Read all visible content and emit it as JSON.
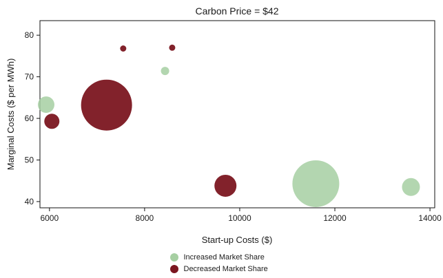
{
  "chart_data": {
    "type": "bubble",
    "title": "Carbon Price = $42",
    "xlabel": "Start-up Costs ($)",
    "ylabel": "Marginal Costs ($ per MWh)",
    "xlim": [
      5800,
      14100
    ],
    "ylim": [
      38.5,
      83.5
    ],
    "xticks": [
      "6000",
      "8000",
      "10000",
      "12000",
      "14000"
    ],
    "yticks": [
      "40",
      "50",
      "60",
      "70",
      "80"
    ],
    "grid": false,
    "legend_position": "bottom-center",
    "series": [
      {
        "name": "Increased Market Share",
        "color": "#a6cfa2",
        "points": [
          {
            "x": 5930,
            "y": 63.3,
            "size": 12
          },
          {
            "x": 8430,
            "y": 71.4,
            "size": 6
          },
          {
            "x": 11600,
            "y": 44.3,
            "size": 34
          },
          {
            "x": 13600,
            "y": 43.5,
            "size": 13
          }
        ]
      },
      {
        "name": "Decreased Market Share",
        "color": "#7b1620",
        "points": [
          {
            "x": 7200,
            "y": 63.2,
            "size": 37
          },
          {
            "x": 6050,
            "y": 59.3,
            "size": 11
          },
          {
            "x": 7550,
            "y": 76.8,
            "size": 4.5
          },
          {
            "x": 8580,
            "y": 77.0,
            "size": 4.5
          },
          {
            "x": 9700,
            "y": 43.8,
            "size": 16
          }
        ]
      }
    ]
  }
}
